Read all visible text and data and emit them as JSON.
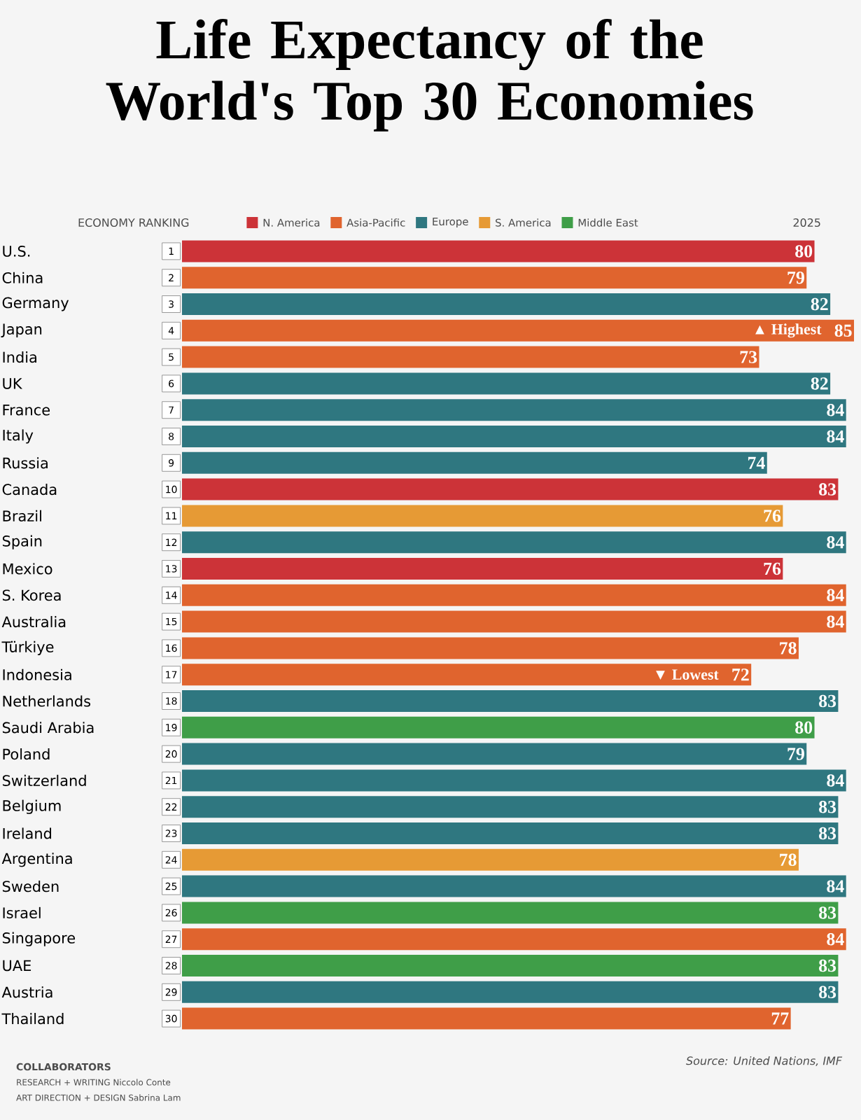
{
  "chart_data": {
    "type": "bar",
    "orientation": "horizontal",
    "title": "Life Expectancy of the World's Top 30 Economies",
    "categories": [
      "U.S.",
      "China",
      "Germany",
      "Japan",
      "India",
      "UK",
      "France",
      "Italy",
      "Russia",
      "Canada",
      "Brazil",
      "Spain",
      "Mexico",
      "S. Korea",
      "Australia",
      "Türkiye",
      "Indonesia",
      "Netherlands",
      "Saudi Arabia",
      "Poland",
      "Switzerland",
      "Belgium",
      "Ireland",
      "Argentina",
      "Sweden",
      "Israel",
      "Singapore",
      "UAE",
      "Austria",
      "Thailand"
    ],
    "series": [
      {
        "name": "N. America",
        "color": "#cc3338",
        "values": [
          80,
          null,
          null,
          null,
          null,
          null,
          null,
          null,
          null,
          83,
          null,
          null,
          76,
          null,
          null,
          null,
          null,
          null,
          null,
          null,
          null,
          null,
          null,
          null,
          null,
          null,
          null,
          null,
          null,
          null
        ]
      },
      {
        "name": "Asia-Pacific",
        "color": "#e0642e",
        "values": [
          null,
          79,
          null,
          85,
          73,
          null,
          null,
          null,
          null,
          null,
          null,
          null,
          null,
          84,
          84,
          78,
          72,
          null,
          null,
          null,
          null,
          null,
          null,
          null,
          null,
          null,
          84,
          null,
          null,
          77
        ]
      },
      {
        "name": "Europe",
        "color": "#2f7780",
        "values": [
          null,
          null,
          82,
          null,
          null,
          82,
          84,
          84,
          74,
          null,
          null,
          84,
          null,
          null,
          null,
          null,
          null,
          83,
          null,
          79,
          84,
          83,
          83,
          null,
          84,
          null,
          null,
          null,
          83,
          null
        ]
      },
      {
        "name": "S. America",
        "color": "#e69a35",
        "values": [
          null,
          null,
          null,
          null,
          null,
          null,
          null,
          null,
          null,
          null,
          76,
          null,
          null,
          null,
          null,
          null,
          null,
          null,
          null,
          null,
          null,
          null,
          null,
          78,
          null,
          null,
          null,
          null,
          null,
          null
        ]
      },
      {
        "name": "Middle East",
        "color": "#3f9e48",
        "values": [
          null,
          null,
          null,
          null,
          null,
          null,
          null,
          null,
          null,
          null,
          null,
          null,
          null,
          null,
          null,
          null,
          null,
          null,
          80,
          null,
          null,
          null,
          null,
          null,
          null,
          83,
          null,
          83,
          null,
          null
        ]
      }
    ],
    "data_labels": true,
    "legend": "top",
    "annotations": [
      "ECONOMY RANKING",
      "2025",
      "Source: United Nations, IMF",
      "COLLABORATORS",
      "RESEARCH + WRITING Niccolo Conte",
      "ART DIRECTION + DESIGN Sabrina Lam",
      {
        "text": "▲ Highest",
        "x": 85,
        "y": "Japan"
      },
      {
        "text": "▼ Lowest",
        "x": 72,
        "y": "Indonesia"
      },
      {
        "text": "1",
        "y": "U.S."
      },
      {
        "text": "2",
        "y": "China"
      },
      {
        "text": "3",
        "y": "Germany"
      },
      {
        "text": "4",
        "y": "Japan"
      },
      {
        "text": "5",
        "y": "India"
      },
      {
        "text": "6",
        "y": "UK"
      },
      {
        "text": "7",
        "y": "France"
      },
      {
        "text": "8",
        "y": "Italy"
      },
      {
        "text": "9",
        "y": "Russia"
      },
      {
        "text": "10",
        "y": "Canada"
      },
      {
        "text": "11",
        "y": "Brazil"
      },
      {
        "text": "12",
        "y": "Spain"
      },
      {
        "text": "13",
        "y": "Mexico"
      },
      {
        "text": "14",
        "y": "S. Korea"
      },
      {
        "text": "15",
        "y": "Australia"
      },
      {
        "text": "16",
        "y": "Türkiye"
      },
      {
        "text": "17",
        "y": "Indonesia"
      },
      {
        "text": "18",
        "y": "Netherlands"
      },
      {
        "text": "19",
        "y": "Saudi Arabia"
      },
      {
        "text": "20",
        "y": "Poland"
      },
      {
        "text": "21",
        "y": "Switzerland"
      },
      {
        "text": "22",
        "y": "Belgium"
      },
      {
        "text": "23",
        "y": "Ireland"
      },
      {
        "text": "24",
        "y": "Argentina"
      },
      {
        "text": "25",
        "y": "Sweden"
      },
      {
        "text": "26",
        "y": "Israel"
      },
      {
        "text": "27",
        "y": "Singapore"
      },
      {
        "text": "28",
        "y": "UAE"
      },
      {
        "text": "29",
        "y": "Austria"
      },
      {
        "text": "30",
        "y": "Thailand"
      }
    ]
  }
}
